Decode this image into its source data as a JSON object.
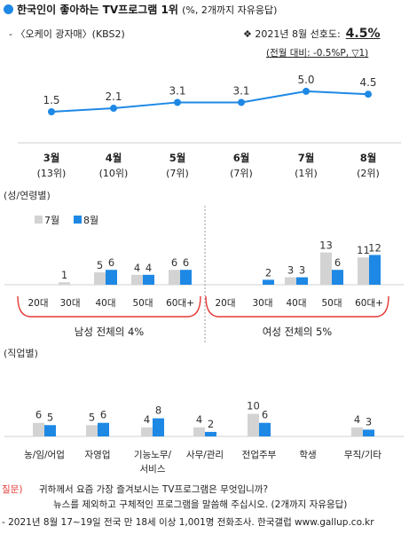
{
  "header": {
    "title": "한국인이 좋아하는 TV프로그램 1위",
    "title_note": "(%, 2개까지 자유응답)",
    "subtitle": "- 〈오케이 광자매〉(KBS2)",
    "preference_label": "❖ 2021년 8월 선호도:",
    "preference_value": "4.5%",
    "change_text": "(전월 대비: -0.5%P, ▽1)"
  },
  "chart_data": [
    {
      "type": "line",
      "x": [
        "3월",
        "4월",
        "5월",
        "6월",
        "7월",
        "8월"
      ],
      "x_rank": [
        "(13위)",
        "(10위)",
        "(7위)",
        "(7위)",
        "(1위)",
        "(2위)"
      ],
      "values": [
        1.5,
        2.1,
        3.1,
        3.1,
        5.0,
        4.5
      ],
      "value_labels": [
        "1.5",
        "2.1",
        "3.1",
        "3.1",
        "5.0",
        "4.5"
      ],
      "color": "#1e88e5"
    },
    {
      "type": "bar",
      "section_label": "(성/연령별)",
      "series": [
        {
          "name": "7월",
          "color": "#d3d3d3"
        },
        {
          "name": "8월",
          "color": "#1e88e5"
        }
      ],
      "groups": [
        {
          "label": "남성 전체의 4%",
          "categories": [
            "20대",
            "30대",
            "40대",
            "50대",
            "60대+"
          ],
          "jul": [
            0,
            1,
            5,
            4,
            6
          ],
          "aug": [
            0,
            0,
            6,
            4,
            6
          ],
          "jul_labels": [
            "",
            "1",
            "5",
            "4",
            "6"
          ],
          "aug_labels": [
            "",
            "",
            "6",
            "4",
            "6"
          ]
        },
        {
          "label": "여성 전체의 5%",
          "categories": [
            "20대",
            "30대",
            "40대",
            "50대",
            "60대+"
          ],
          "jul": [
            0,
            0,
            3,
            13,
            11
          ],
          "aug": [
            0,
            2,
            3,
            6,
            12
          ],
          "jul_labels": [
            "",
            "",
            "3",
            "13",
            "11"
          ],
          "aug_labels": [
            "",
            "2",
            "3",
            "6",
            "12"
          ]
        }
      ]
    },
    {
      "type": "bar",
      "section_label": "(직업별)",
      "categories": [
        "농/임/어업",
        "자영업",
        "기능노무/\n서비스",
        "사무/관리",
        "전업주부",
        "학생",
        "무직/기타"
      ],
      "jul": [
        6,
        5,
        4,
        4,
        10,
        0,
        4
      ],
      "aug": [
        5,
        6,
        8,
        2,
        6,
        0,
        3
      ],
      "jul_labels": [
        "6",
        "5",
        "4",
        "4",
        "10",
        "",
        "4"
      ],
      "aug_labels": [
        "5",
        "6",
        "8",
        "2",
        "6",
        "",
        "3"
      ]
    }
  ],
  "footer": {
    "question_label": "질문)",
    "question_line1": "귀하께서 요즘 가장 즐겨보시는 TV프로그램은 무엇입니까?",
    "question_line2": "뉴스를 제외하고 구체적인 프로그램을 말씀해 주십시오. (2개까지 자유응답)",
    "source": "- 2021년 8월 17~19일 전국 만 18세 이상 1,001명 전화조사. 한국갤럽 www.gallup.co.kr"
  }
}
